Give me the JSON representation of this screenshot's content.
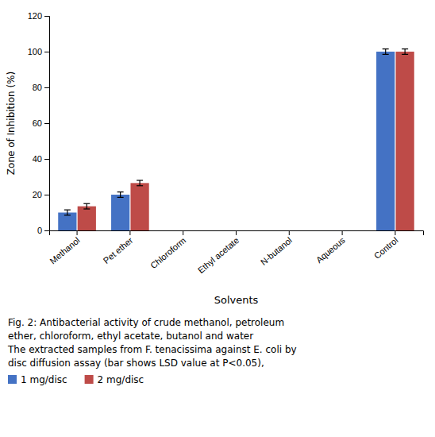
{
  "chart_data": {
    "type": "bar",
    "categories": [
      "Methanol",
      "Pet ether",
      "Chloroform",
      "Ethyl acetate",
      "N-butanol",
      "Aqueous",
      "Control"
    ],
    "series": [
      {
        "name": "1 mg/disc",
        "color": "#4472C4",
        "values": [
          10,
          20,
          0,
          0,
          0,
          0,
          100
        ],
        "errors": [
          1.5,
          1.5,
          0,
          0,
          0,
          0,
          1.5
        ]
      },
      {
        "name": "2 mg/disc",
        "color": "#BE4B48",
        "values": [
          13.5,
          26.5,
          0,
          0,
          0,
          0,
          100
        ],
        "errors": [
          1.5,
          1.5,
          0,
          0,
          0,
          0,
          1.5
        ]
      }
    ],
    "y_label": "Zone of Inhibition (%)",
    "x_label": "Solvents",
    "ylim": [
      0,
      120
    ],
    "yticks": [
      0,
      20,
      40,
      60,
      80,
      100,
      120
    ],
    "grid": false,
    "legend": "bottom",
    "annotations": [
      "Fig. 2:  Antibacterial activity of crude methanol, petroleum",
      "ether, chloroform, ethyl acetate, butanol and water",
      "The extracted samples from F. tenacissima against E. coli by",
      "disc diffusion assay (bar shows LSD value at P<0.05),"
    ]
  }
}
